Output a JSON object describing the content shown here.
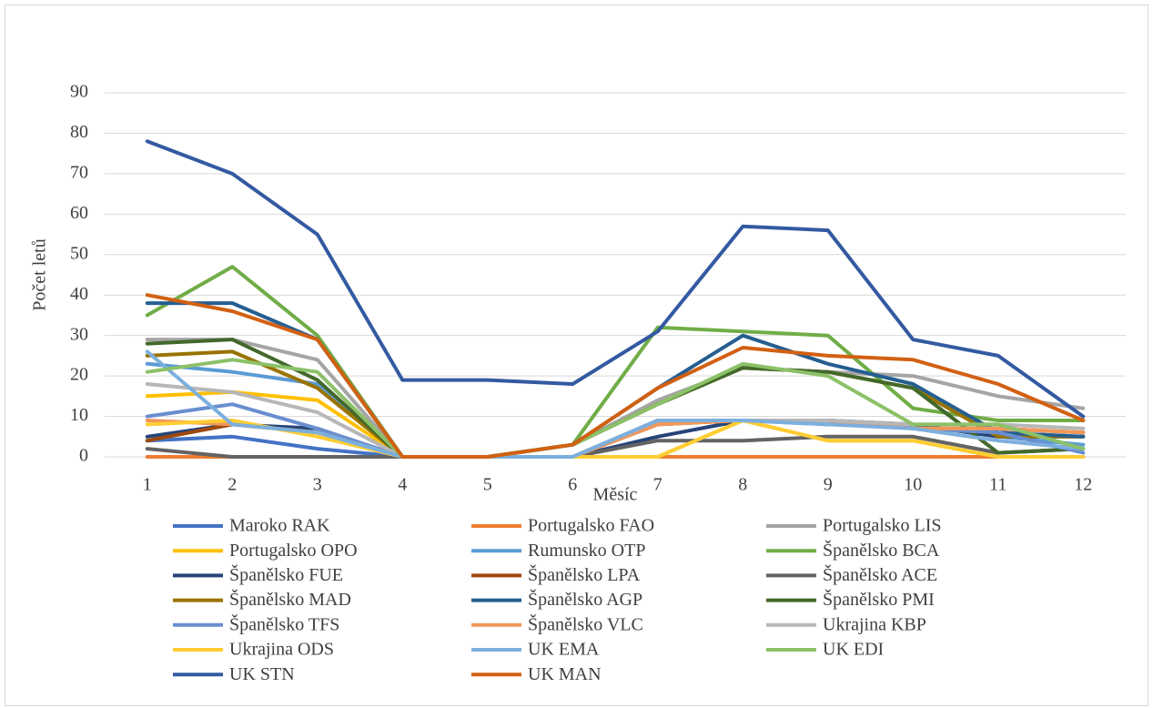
{
  "chart_data": {
    "type": "line",
    "x_label": "Měsíc",
    "y_label": "Počet letů",
    "categories": [
      "1",
      "2",
      "3",
      "4",
      "5",
      "6",
      "7",
      "8",
      "9",
      "10",
      "11",
      "12"
    ],
    "ylim": [
      0,
      90
    ],
    "yticks": [
      0,
      10,
      20,
      30,
      40,
      50,
      60,
      70,
      80,
      90
    ],
    "grid": true,
    "legend": "bottom",
    "series": [
      {
        "name": "Maroko RAK",
        "color": "#4472c4",
        "values": [
          4,
          5,
          2,
          0,
          0,
          0,
          0,
          0,
          0,
          0,
          0,
          0
        ]
      },
      {
        "name": "Portugalsko FAO",
        "color": "#ed7d31",
        "values": [
          0,
          0,
          0,
          0,
          0,
          0,
          0,
          0,
          0,
          0,
          0,
          0
        ]
      },
      {
        "name": "Portugalsko LIS",
        "color": "#a5a5a5",
        "values": [
          29,
          29,
          24,
          0,
          0,
          3,
          14,
          22,
          21,
          20,
          15,
          12
        ]
      },
      {
        "name": "Portugalsko OPO",
        "color": "#ffc000",
        "values": [
          15,
          16,
          14,
          0,
          0,
          0,
          0,
          9,
          4,
          4,
          0,
          0
        ]
      },
      {
        "name": "Rumunsko OTP",
        "color": "#5b9bd5",
        "values": [
          23,
          21,
          18,
          0,
          0,
          0,
          9,
          9,
          8,
          8,
          5,
          3
        ]
      },
      {
        "name": "Španělsko BCA",
        "color": "#70ad47",
        "values": [
          35,
          47,
          30,
          0,
          0,
          3,
          32,
          31,
          30,
          12,
          9,
          9
        ]
      },
      {
        "name": "Španělsko FUE",
        "color": "#264478",
        "values": [
          5,
          8,
          7,
          0,
          0,
          0,
          5,
          9,
          9,
          8,
          5,
          5
        ]
      },
      {
        "name": "Španělsko LPA",
        "color": "#9e480e",
        "values": [
          4,
          8,
          6,
          0,
          0,
          0,
          8,
          9,
          9,
          7,
          7,
          6
        ]
      },
      {
        "name": "Španělsko ACE",
        "color": "#636363",
        "values": [
          2,
          0,
          0,
          0,
          0,
          0,
          4,
          4,
          5,
          5,
          1,
          2
        ]
      },
      {
        "name": "Španělsko MAD",
        "color": "#997300",
        "values": [
          25,
          26,
          17,
          0,
          0,
          3,
          13,
          22,
          21,
          17,
          5,
          5
        ]
      },
      {
        "name": "Španělsko AGP",
        "color": "#255e91",
        "values": [
          38,
          38,
          29,
          0,
          0,
          3,
          17,
          30,
          23,
          18,
          6,
          5
        ]
      },
      {
        "name": "Španělsko PMI",
        "color": "#43682b",
        "values": [
          28,
          29,
          19,
          0,
          0,
          3,
          13,
          22,
          21,
          17,
          1,
          2
        ]
      },
      {
        "name": "Španělsko TFS",
        "color": "#698ed0",
        "values": [
          10,
          13,
          7,
          0,
          0,
          0,
          9,
          9,
          9,
          7,
          6,
          1
        ]
      },
      {
        "name": "Španělsko VLC",
        "color": "#f1975a",
        "values": [
          9,
          8,
          6,
          0,
          0,
          0,
          8,
          9,
          9,
          7,
          7,
          6
        ]
      },
      {
        "name": "Ukrajina KBP",
        "color": "#b7b7b7",
        "values": [
          18,
          16,
          11,
          0,
          0,
          0,
          9,
          9,
          9,
          8,
          8,
          7
        ]
      },
      {
        "name": "Ukrajina ODS",
        "color": "#ffcd33",
        "values": [
          8,
          9,
          5,
          0,
          0,
          0,
          0,
          9,
          4,
          4,
          0,
          0
        ]
      },
      {
        "name": "UK EMA",
        "color": "#7cafdd",
        "values": [
          26,
          8,
          6,
          0,
          0,
          0,
          9,
          9,
          8,
          7,
          4,
          2
        ]
      },
      {
        "name": "UK EDI",
        "color": "#8cc168",
        "values": [
          21,
          24,
          21,
          0,
          0,
          3,
          13,
          23,
          20,
          8,
          8,
          2
        ]
      },
      {
        "name": "UK STN",
        "color": "#335aa1",
        "values": [
          78,
          70,
          55,
          19,
          19,
          18,
          31,
          57,
          56,
          29,
          25,
          10
        ]
      },
      {
        "name": "UK MAN",
        "color": "#d26012",
        "values": [
          40,
          36,
          29,
          0,
          0,
          3,
          17,
          27,
          25,
          24,
          18,
          9
        ]
      }
    ]
  }
}
